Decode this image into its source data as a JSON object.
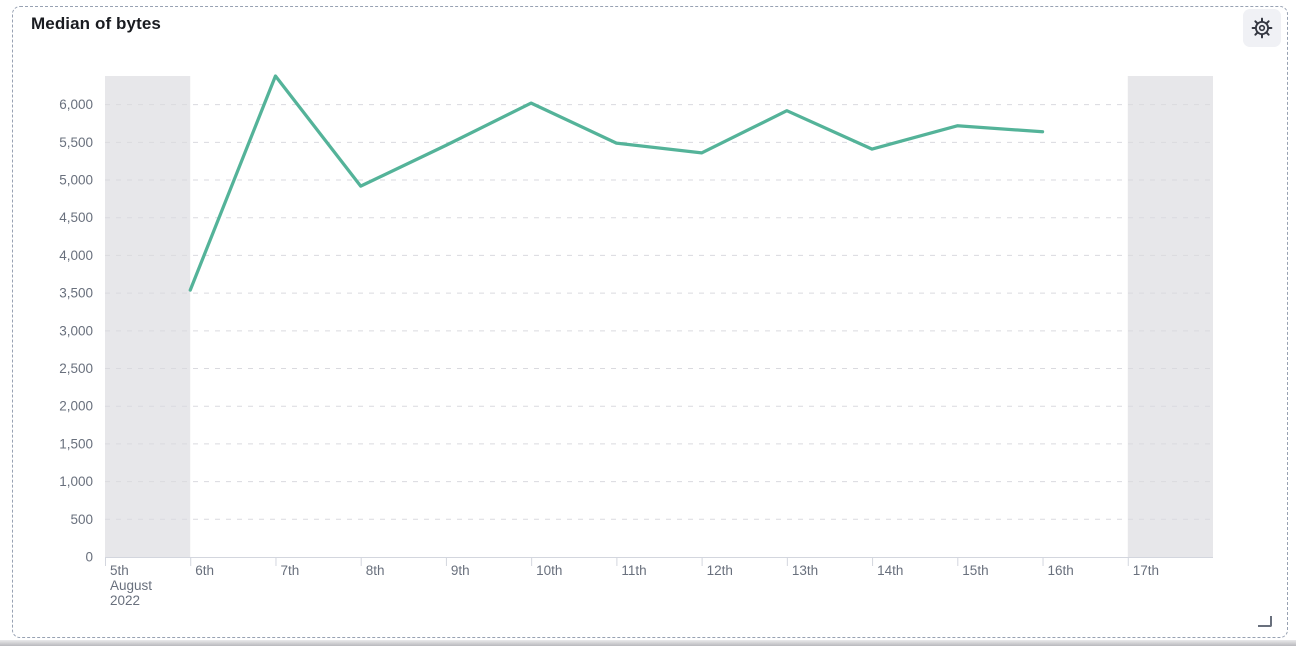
{
  "panel": {
    "title": "Median of bytes"
  },
  "icons": {
    "settings": "gear-icon",
    "resize": "resize-handle-icon"
  },
  "colors": {
    "line": "#54B399",
    "partial_band": "#E7E7EA",
    "grid": "#DADADF",
    "axis": "#D3D6DE",
    "axis_text": "#69707D",
    "title_text": "#1A1C21",
    "panel_border": "#98A2B3",
    "icon": "#343741"
  },
  "chart_data": {
    "type": "line",
    "title": "Median of bytes",
    "xlabel": "",
    "ylabel": "",
    "grid": "horizontal-dashed",
    "legend": "none",
    "ylim": [
      0,
      6380
    ],
    "categories": [
      "5th",
      "6th",
      "7th",
      "8th",
      "9th",
      "10th",
      "11th",
      "12th",
      "13th",
      "14th",
      "15th",
      "16th",
      "17th"
    ],
    "x_first_tick_extra_lines": [
      "August",
      "2022"
    ],
    "y_ticks": [
      {
        "v": 0,
        "label": "0"
      },
      {
        "v": 500,
        "label": "500"
      },
      {
        "v": 1000,
        "label": "1,000"
      },
      {
        "v": 1500,
        "label": "1,500"
      },
      {
        "v": 2000,
        "label": "2,000"
      },
      {
        "v": 2500,
        "label": "2,500"
      },
      {
        "v": 3000,
        "label": "3,000"
      },
      {
        "v": 3500,
        "label": "3,500"
      },
      {
        "v": 4000,
        "label": "4,000"
      },
      {
        "v": 4500,
        "label": "4,500"
      },
      {
        "v": 5000,
        "label": "5,000"
      },
      {
        "v": 5500,
        "label": "5,500"
      },
      {
        "v": 6000,
        "label": "6,000"
      }
    ],
    "series": [
      {
        "name": "Median of bytes",
        "color": "#54B399",
        "values": [
          null,
          3540,
          6380,
          4920,
          5460,
          6020,
          5490,
          5360,
          5920,
          5410,
          5720,
          5640,
          null
        ]
      }
    ],
    "partial_bucket_indices": [
      0,
      12
    ]
  }
}
